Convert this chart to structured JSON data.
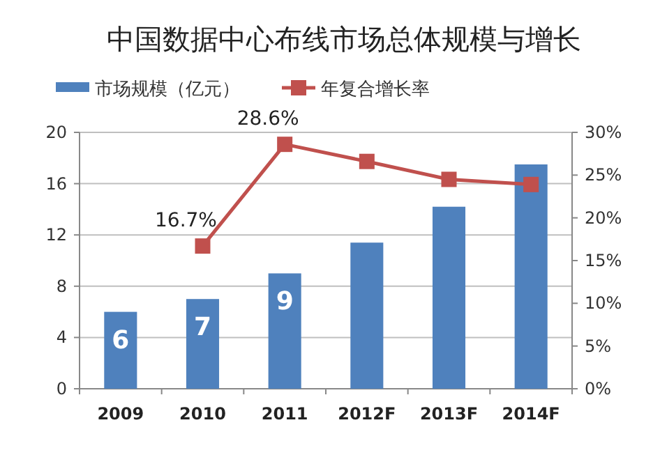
{
  "chart_data": {
    "type": "bar",
    "title": "中国数据中心布线市场总体规模与增长",
    "categories": [
      "2009",
      "2010",
      "2011",
      "2012F",
      "2013F",
      "2014F"
    ],
    "series": [
      {
        "name": "市场规模（亿元）",
        "color": "#4f81bd",
        "values": [
          6,
          7,
          9,
          11.4,
          14.2,
          17.5
        ],
        "value_labels": [
          "6",
          "7",
          "9",
          null,
          null,
          null
        ]
      },
      {
        "name": "年复合增长率",
        "type": "line",
        "axis": "y2",
        "color": "#c0504d",
        "values": [
          null,
          16.7,
          28.6,
          26.6,
          24.5,
          23.9
        ],
        "value_labels": [
          null,
          "16.7%",
          "28.6%",
          null,
          null,
          null
        ]
      }
    ],
    "ylim": [
      0,
      20
    ],
    "yticks": [
      0,
      4,
      8,
      12,
      16,
      20
    ],
    "y2lim": [
      0,
      30
    ],
    "y2ticks": [
      {
        "value": 0,
        "label": "0%"
      },
      {
        "value": 5,
        "label": "5%"
      },
      {
        "value": 10,
        "label": "10%"
      },
      {
        "value": 15,
        "label": "15%"
      },
      {
        "value": 20,
        "label": "20%"
      },
      {
        "value": 25,
        "label": "25%"
      },
      {
        "value": 30,
        "label": "30%"
      }
    ],
    "grid": "y",
    "legend": "top left",
    "marker": "square"
  }
}
